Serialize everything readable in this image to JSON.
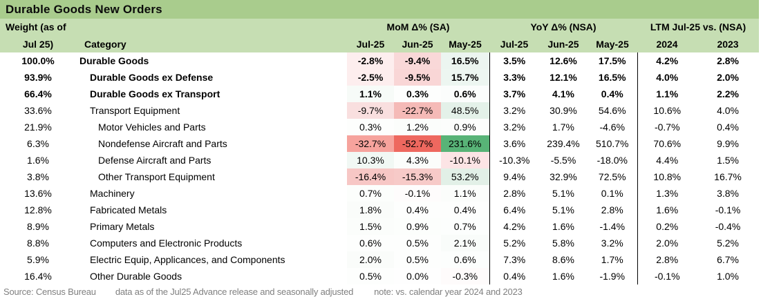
{
  "title": "Durable Goods New Orders",
  "header": {
    "weight_line1": "Weight (as of",
    "weight_line2": "Jul 25)",
    "category_label": "Category",
    "groups": [
      {
        "label": "MoM Δ% (SA)",
        "cols": [
          "Jul-25",
          "Jun-25",
          "May-25"
        ]
      },
      {
        "label": "YoY Δ% (NSA)",
        "cols": [
          "Jul-25",
          "Jun-25",
          "May-25"
        ]
      },
      {
        "label": "LTM Jul-25 vs. (NSA)",
        "cols": [
          "2024",
          "2023"
        ]
      }
    ]
  },
  "rows": [
    {
      "weight": "100.0%",
      "category": "Durable Goods",
      "indent": 0,
      "bold": true,
      "mom": [
        "-2.8%",
        "-9.4%",
        "16.5%"
      ],
      "mom_bg": [
        "#fdeeee",
        "#f9d8d8",
        "#ecf5f0"
      ],
      "yoy": [
        "3.5%",
        "12.6%",
        "17.5%"
      ],
      "ltm": [
        "4.2%",
        "2.8%"
      ]
    },
    {
      "weight": "93.9%",
      "category": "Durable Goods ex Defense",
      "indent": 1,
      "bold": true,
      "mom": [
        "-2.5%",
        "-9.5%",
        "15.7%"
      ],
      "mom_bg": [
        "#fdeeee",
        "#f9d6d6",
        "#edf6f1"
      ],
      "yoy": [
        "3.3%",
        "12.1%",
        "16.5%"
      ],
      "ltm": [
        "4.0%",
        "2.0%"
      ]
    },
    {
      "weight": "66.4%",
      "category": "Durable Goods ex Transport",
      "indent": 1,
      "bold": true,
      "mom": [
        "1.1%",
        "0.3%",
        "0.6%"
      ],
      "mom_bg": [
        "#f7fbf8",
        "#fdfefd",
        "#fbfdfc"
      ],
      "yoy": [
        "3.7%",
        "4.1%",
        "0.4%"
      ],
      "ltm": [
        "1.1%",
        "2.2%"
      ]
    },
    {
      "weight": "33.6%",
      "category": "Transport Equipment",
      "indent": 1,
      "bold": false,
      "mom": [
        "-9.7%",
        "-22.7%",
        "48.5%"
      ],
      "mom_bg": [
        "#f9dfdf",
        "#f5bab7",
        "#e4f1e9"
      ],
      "yoy": [
        "3.2%",
        "30.9%",
        "54.6%"
      ],
      "ltm": [
        "10.6%",
        "4.0%"
      ]
    },
    {
      "weight": "21.9%",
      "category": "Motor Vehicles and Parts",
      "indent": 2,
      "bold": false,
      "mom": [
        "0.3%",
        "1.2%",
        "0.9%"
      ],
      "mom_bg": [
        "#fdfefd",
        "#fbfdfb",
        "#fcfdfc"
      ],
      "yoy": [
        "3.2%",
        "1.7%",
        "-4.6%"
      ],
      "ltm": [
        "-0.7%",
        "0.4%"
      ]
    },
    {
      "weight": "6.3%",
      "category": "Nondefense Aircraft and Parts",
      "indent": 2,
      "bold": false,
      "mom": [
        "-32.7%",
        "-52.7%",
        "231.6%"
      ],
      "mom_bg": [
        "#f6a39d",
        "#ee685f",
        "#58b377"
      ],
      "yoy": [
        "3.6%",
        "239.4%",
        "510.7%"
      ],
      "ltm": [
        "70.6%",
        "9.9%"
      ]
    },
    {
      "weight": "1.6%",
      "category": "Defense Aircraft and Parts",
      "indent": 2,
      "bold": false,
      "mom": [
        "10.3%",
        "4.3%",
        "-10.1%"
      ],
      "mom_bg": [
        "#f1f8f4",
        "#fbfdfb",
        "#fce4e5"
      ],
      "yoy": [
        "-10.3%",
        "-5.5%",
        "-18.0%"
      ],
      "ltm": [
        "4.4%",
        "1.5%"
      ]
    },
    {
      "weight": "3.8%",
      "category": "Other Transport Equipment",
      "indent": 2,
      "bold": false,
      "mom": [
        "-16.4%",
        "-15.3%",
        "53.2%"
      ],
      "mom_bg": [
        "#f7c7c5",
        "#f7cac8",
        "#e2f0e7"
      ],
      "yoy": [
        "9.4%",
        "32.9%",
        "72.5%"
      ],
      "ltm": [
        "10.8%",
        "16.7%"
      ]
    },
    {
      "weight": "13.6%",
      "category": "Machinery",
      "indent": 1,
      "bold": false,
      "mom": [
        "0.7%",
        "-0.1%",
        "1.1%"
      ],
      "mom_bg": [
        "#fcfefc",
        "#fefcfc",
        "#fbfdfb"
      ],
      "yoy": [
        "2.8%",
        "5.1%",
        "0.1%"
      ],
      "ltm": [
        "1.3%",
        "3.8%"
      ]
    },
    {
      "weight": "12.8%",
      "category": "Fabricated Metals",
      "indent": 1,
      "bold": false,
      "mom": [
        "1.8%",
        "0.4%",
        "0.4%"
      ],
      "mom_bg": [
        "#fafcfa",
        "#fdfefd",
        "#fdfefd"
      ],
      "yoy": [
        "6.4%",
        "5.1%",
        "2.8%"
      ],
      "ltm": [
        "1.6%",
        "-0.1%"
      ]
    },
    {
      "weight": "8.9%",
      "category": "Primary Metals",
      "indent": 1,
      "bold": false,
      "mom": [
        "1.5%",
        "0.9%",
        "0.7%"
      ],
      "mom_bg": [
        "#fbfdfb",
        "#fcfefc",
        "#fcfefd"
      ],
      "yoy": [
        "4.2%",
        "1.6%",
        "-1.4%"
      ],
      "ltm": [
        "0.2%",
        "-0.4%"
      ]
    },
    {
      "weight": "8.8%",
      "category": "Computers and Electronic Products",
      "indent": 1,
      "bold": false,
      "mom": [
        "0.6%",
        "0.5%",
        "2.1%"
      ],
      "mom_bg": [
        "#fdfefd",
        "#fdfefd",
        "#f9fcfa"
      ],
      "yoy": [
        "5.2%",
        "5.8%",
        "3.2%"
      ],
      "ltm": [
        "2.0%",
        "5.2%"
      ]
    },
    {
      "weight": "5.9%",
      "category": "Electric Equip, Applicances, and Components",
      "indent": 1,
      "bold": false,
      "mom": [
        "2.0%",
        "0.5%",
        "0.6%"
      ],
      "mom_bg": [
        "#fafcfa",
        "#fdfefd",
        "#fcfefd"
      ],
      "yoy": [
        "7.3%",
        "8.6%",
        "1.7%"
      ],
      "ltm": [
        "2.8%",
        "6.7%"
      ]
    },
    {
      "weight": "16.4%",
      "category": "Other Durable Goods",
      "indent": 1,
      "bold": false,
      "mom": [
        "0.5%",
        "0.0%",
        "-0.3%"
      ],
      "mom_bg": [
        "#fdfefd",
        "#fefefe",
        "#fefbfb"
      ],
      "yoy": [
        "0.4%",
        "1.6%",
        "-1.9%"
      ],
      "ltm": [
        "-0.1%",
        "1.0%"
      ]
    }
  ],
  "footer": {
    "source": "Source: Census Bureau",
    "data_note": "data as of the Jul25 Advance release and seasonally adjusted",
    "comparison_note": "note: vs. calendar year 2024 and 2023"
  },
  "colors": {
    "title_bar": "#a9cc8d",
    "header_band": "#c6deb3",
    "divider": "#000000",
    "footer_text": "#7f7f7f",
    "strong_negative": "#ee685f",
    "strong_positive": "#58b377"
  }
}
